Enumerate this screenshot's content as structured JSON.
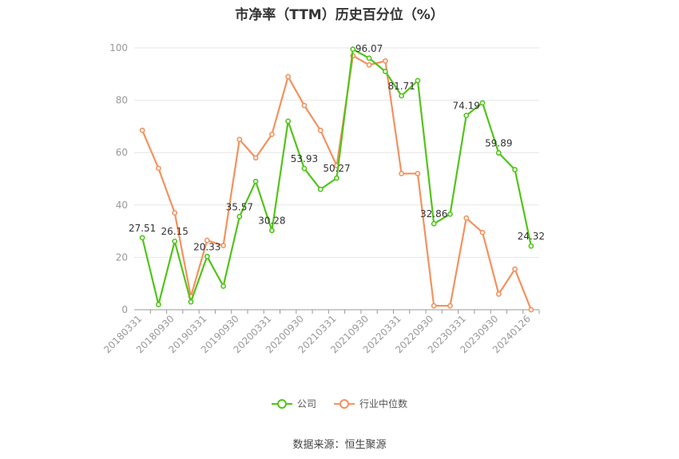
{
  "chart_data": {
    "type": "line",
    "title": "市净率（TTM）历史百分位（%）",
    "x": [
      "20180331",
      "20180630",
      "20180930",
      "20181231",
      "20190331",
      "20190630",
      "20190930",
      "20191231",
      "20200331",
      "20200630",
      "20200930",
      "20201231",
      "20210331",
      "20210630",
      "20210930",
      "20211231",
      "20220331",
      "20220630",
      "20220930",
      "20221231",
      "20230331",
      "20230630",
      "20230930",
      "20231231",
      "20240126"
    ],
    "x_tick_labels": [
      "20180331",
      "20180930",
      "20190331",
      "20190930",
      "20200331",
      "20200930",
      "20210331",
      "20210930",
      "20220331",
      "20220930",
      "20230331",
      "20230930",
      "20240126"
    ],
    "y_ticks": [
      0,
      20,
      40,
      60,
      80,
      100
    ],
    "ylim": [
      0,
      100
    ],
    "grid": true,
    "legend_position": "bottom",
    "series": [
      {
        "name": "公司",
        "color": "#52c41a",
        "values": [
          27.51,
          2,
          26.15,
          3,
          20.33,
          9,
          35.57,
          49,
          30.28,
          72,
          53.93,
          46,
          50.27,
          99.5,
          96.07,
          91,
          81.71,
          87.5,
          32.86,
          36.5,
          74.19,
          79,
          59.89,
          53.5,
          24.32
        ],
        "labels": {
          "0": "27.51",
          "2": "26.15",
          "4": "20.33",
          "6": "35.57",
          "8": "30.28",
          "10": "53.93",
          "12": "50.27",
          "14": "96.07",
          "16": "81.71",
          "18": "32.86",
          "20": "74.19",
          "22": "59.89",
          "24": "24.32"
        }
      },
      {
        "name": "行业中位数",
        "color": "#f4915e",
        "values": [
          68.5,
          54,
          37,
          5,
          26.5,
          24.5,
          65,
          58,
          67,
          89,
          78,
          68.5,
          55,
          97,
          93.5,
          95,
          52,
          52,
          1.5,
          1.5,
          35,
          29.5,
          6,
          15.5,
          0
        ]
      }
    ]
  },
  "legend": {
    "company_label": "公司",
    "industry_label": "行业中位数"
  },
  "source_note": "数据来源：恒生聚源"
}
